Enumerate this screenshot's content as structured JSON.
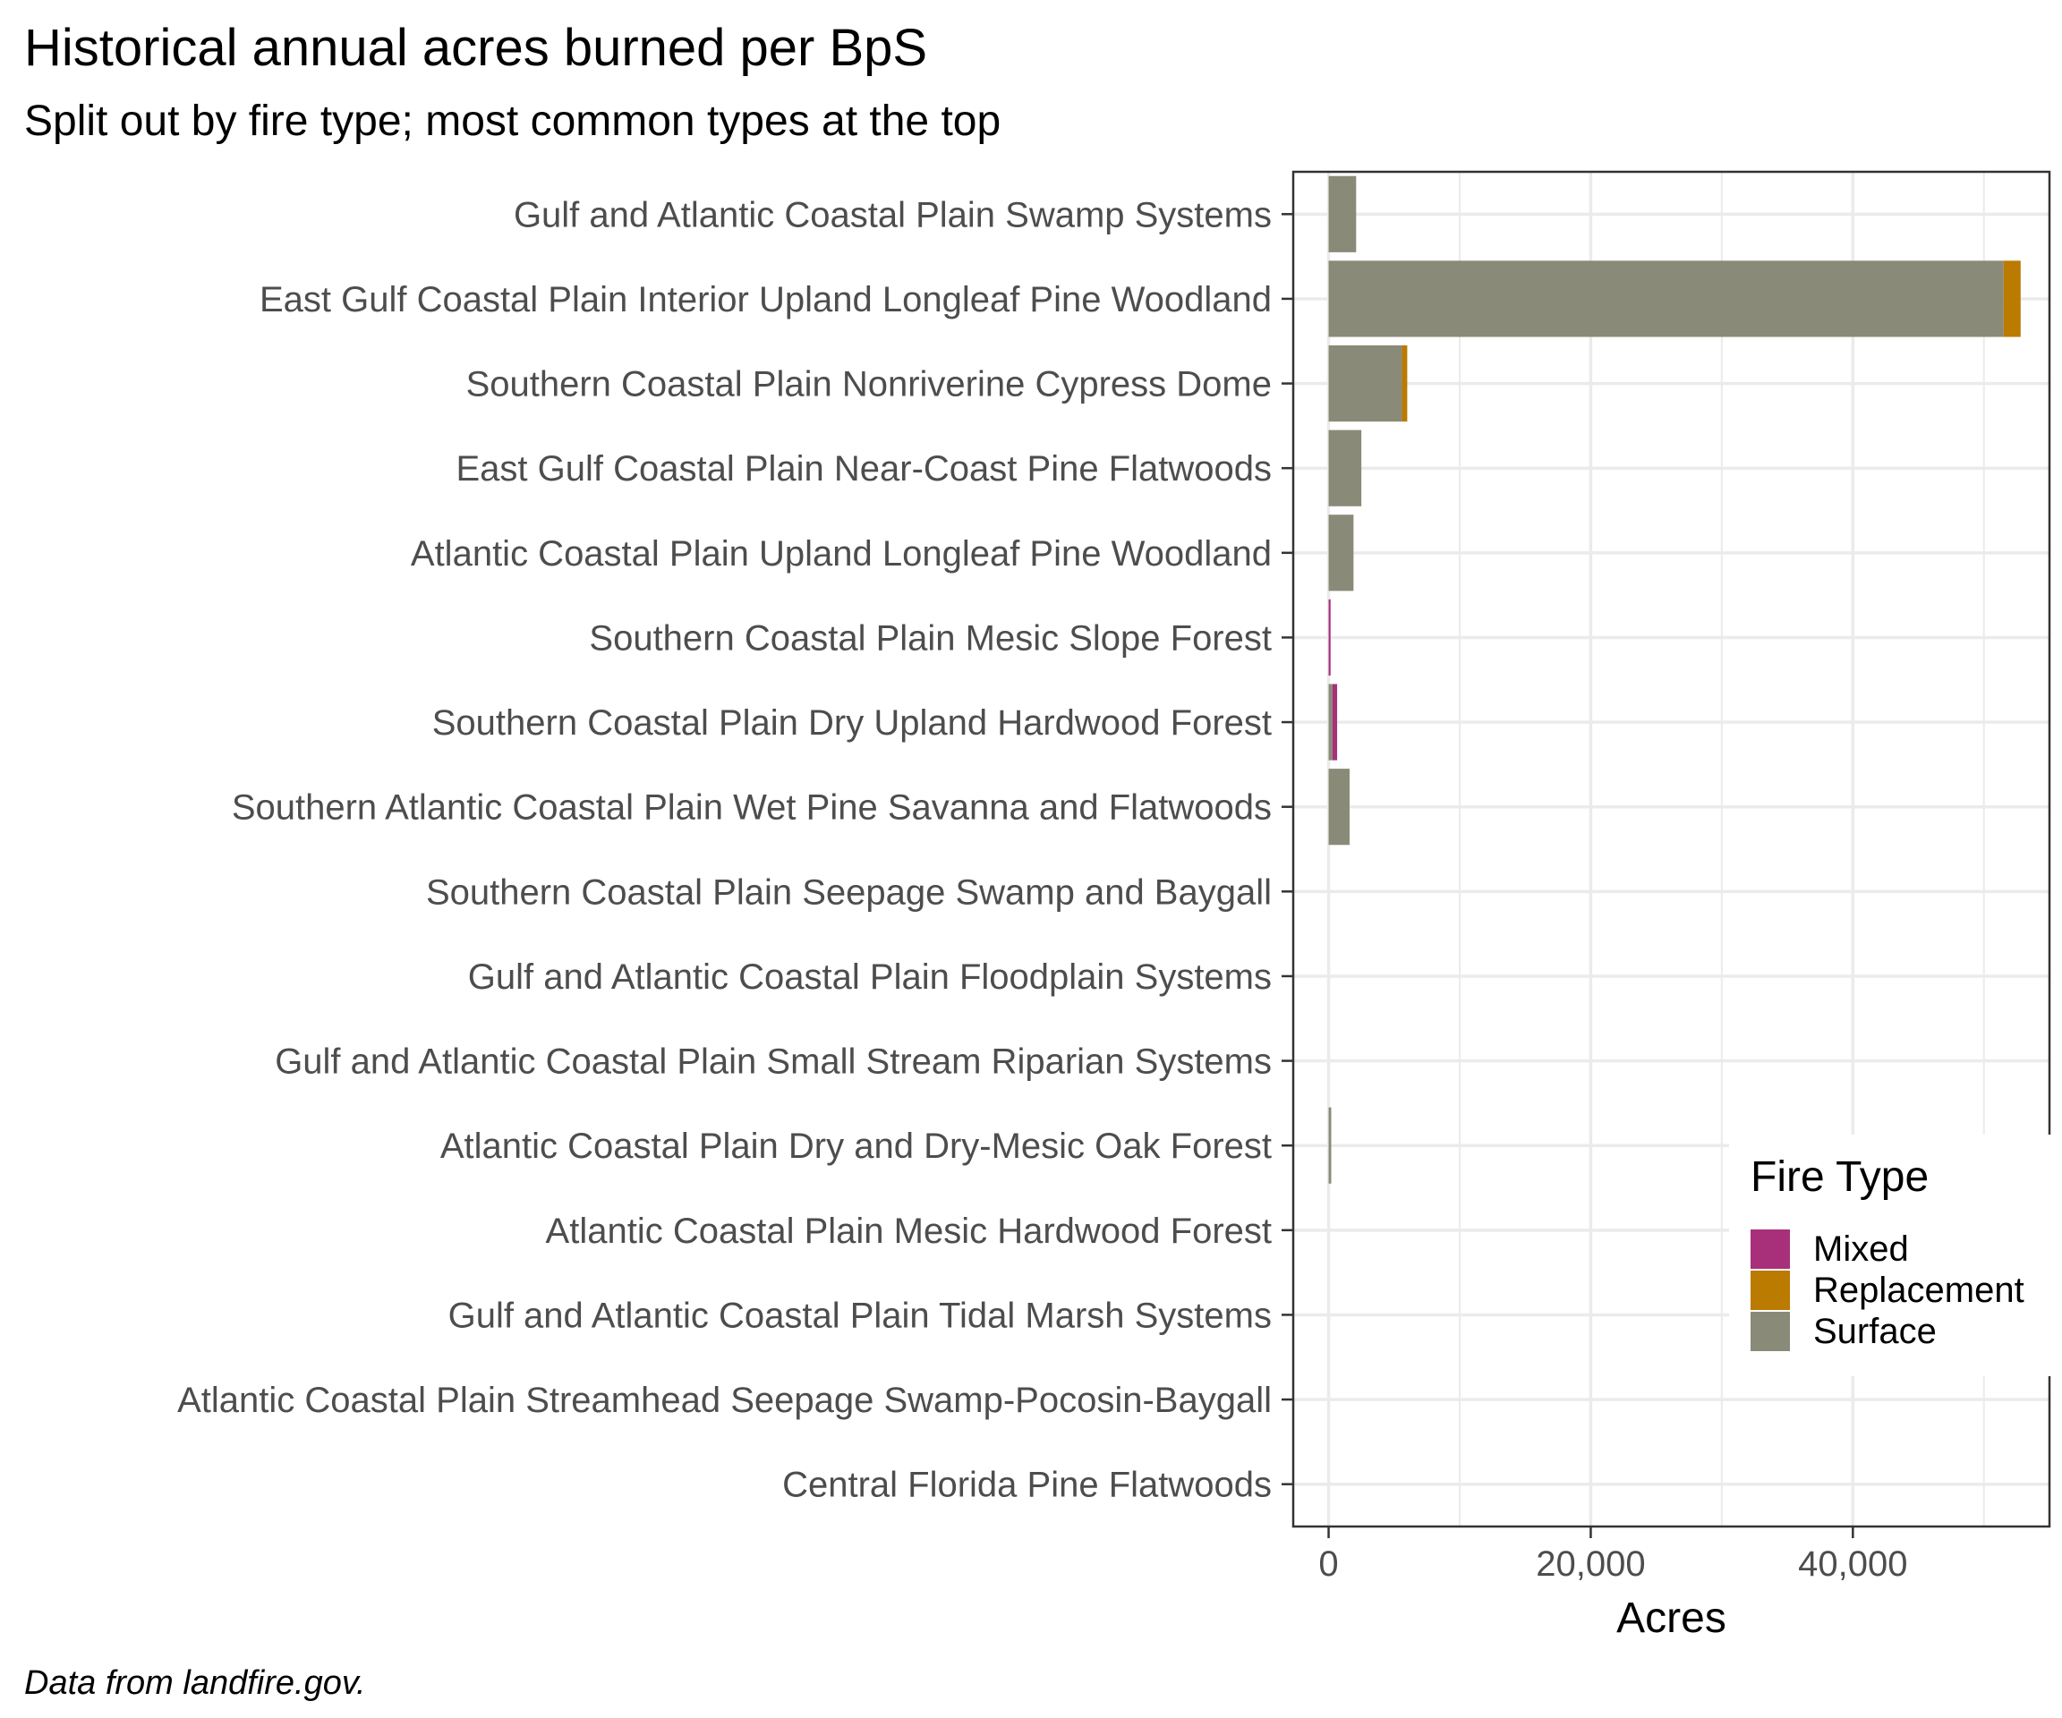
{
  "title": "Historical annual acres burned per BpS",
  "subtitle": "Split out by fire type; most common types at the top",
  "caption": "Data from landfire.gov.",
  "colors": {
    "Mixed": "#a8307a",
    "Replacement": "#bb7a00",
    "Surface": "#8a8a78"
  },
  "legend": {
    "title": "Fire Type",
    "items": [
      "Mixed",
      "Replacement",
      "Surface"
    ]
  },
  "chart_data": {
    "type": "bar",
    "orientation": "horizontal",
    "stacked": true,
    "title": "Historical annual acres burned per BpS",
    "subtitle": "Split out by fire type; most common types at the top",
    "xlabel": "Acres",
    "ylabel": "",
    "xlim": [
      -2700,
      55000
    ],
    "xticks": [
      0,
      20000,
      40000
    ],
    "xtick_labels": [
      "0",
      "20,000",
      "40,000"
    ],
    "grid": true,
    "legend_position": "right",
    "categories": [
      "Gulf and Atlantic Coastal Plain Swamp Systems",
      "East Gulf Coastal Plain Interior Upland Longleaf Pine Woodland",
      "Southern Coastal Plain Nonriverine Cypress Dome",
      "East Gulf Coastal Plain Near-Coast Pine Flatwoods",
      "Atlantic Coastal Plain Upland Longleaf Pine Woodland",
      "Southern Coastal Plain Mesic Slope Forest",
      "Southern Coastal Plain Dry Upland Hardwood Forest",
      "Southern Atlantic Coastal Plain Wet Pine Savanna and Flatwoods",
      "Southern Coastal Plain Seepage Swamp and Baygall",
      "Gulf and Atlantic Coastal Plain Floodplain Systems",
      "Gulf and Atlantic Coastal Plain Small Stream Riparian Systems",
      "Atlantic Coastal Plain Dry and Dry-Mesic Oak Forest",
      "Atlantic Coastal Plain Mesic Hardwood Forest",
      "Gulf and Atlantic Coastal Plain Tidal Marsh Systems",
      "Atlantic Coastal Plain Streamhead Seepage Swamp-Pocosin-Baygall",
      "Central Florida Pine Flatwoods"
    ],
    "series": [
      {
        "name": "Mixed",
        "values": [
          0,
          0,
          0,
          0,
          0,
          150,
          350,
          0,
          0,
          0,
          0,
          0,
          0,
          0,
          0,
          0
        ]
      },
      {
        "name": "Replacement",
        "values": [
          0,
          1300,
          400,
          0,
          0,
          0,
          0,
          0,
          0,
          0,
          0,
          0,
          0,
          0,
          0,
          0
        ]
      },
      {
        "name": "Surface",
        "values": [
          2100,
          51500,
          5600,
          2500,
          1900,
          0,
          300,
          1600,
          0,
          0,
          0,
          200,
          0,
          0,
          0,
          0
        ]
      }
    ]
  }
}
